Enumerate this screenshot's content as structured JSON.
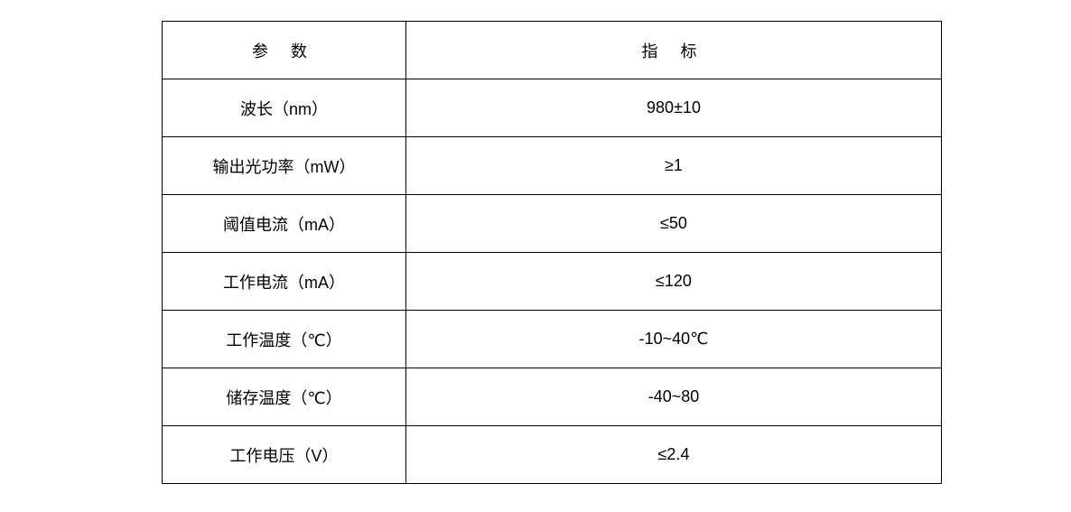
{
  "table": {
    "headers": [
      "参 数",
      "指 标"
    ],
    "rows": [
      [
        "波长（nm）",
        "980±10"
      ],
      [
        "输出光功率（mW）",
        "≥1"
      ],
      [
        "阈值电流（mA）",
        "≤50"
      ],
      [
        "工作电流（mA）",
        "≤120"
      ],
      [
        "工作温度（℃）",
        "-10~40℃"
      ],
      [
        "储存温度（℃）",
        "-40~80"
      ],
      [
        "工作电压（V）",
        "≤2.4"
      ]
    ]
  }
}
